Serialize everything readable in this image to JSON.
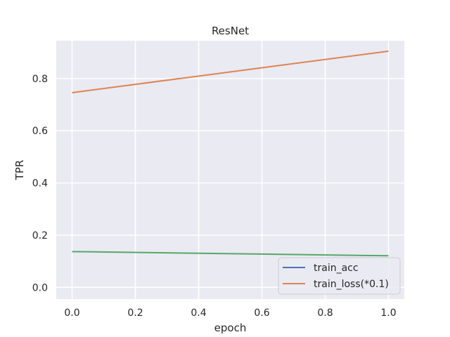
{
  "chart_data": {
    "type": "line",
    "title": "ResNet",
    "xlabel": "epoch",
    "ylabel": "TPR",
    "x": [
      0.0,
      1.0
    ],
    "xlim": [
      -0.05,
      1.05
    ],
    "ylim": [
      -0.045,
      0.945
    ],
    "xticks": [
      0.0,
      0.2,
      0.4,
      0.6,
      0.8,
      1.0
    ],
    "xtick_labels": [
      "0.0",
      "0.2",
      "0.4",
      "0.6",
      "0.8",
      "1.0"
    ],
    "yticks": [
      0.0,
      0.2,
      0.4,
      0.6,
      0.8
    ],
    "ytick_labels": [
      "0.0",
      "0.2",
      "0.4",
      "0.6",
      "0.8"
    ],
    "grid": true,
    "legend_position": "lower-right",
    "series": [
      {
        "name": "train_acc",
        "values": [
          0.137,
          0.121
        ],
        "color": "#55a868",
        "legend_color": "#4c72b0"
      },
      {
        "name": "train_loss(*0.1)",
        "values": [
          0.746,
          0.905
        ],
        "color": "#dd8452",
        "legend_color": "#dd8452"
      }
    ],
    "background_color": "#eaeaf2",
    "grid_color": "#ffffff"
  }
}
